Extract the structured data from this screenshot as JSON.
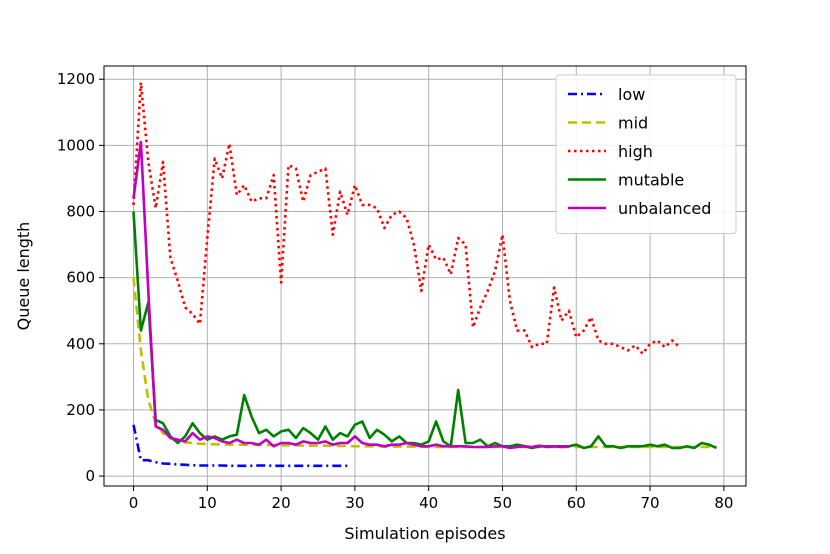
{
  "chart_data": {
    "type": "line",
    "title": "",
    "xlabel": "Simulation episodes",
    "ylabel": "Queue length",
    "xlim": [
      -4,
      83
    ],
    "ylim": [
      -30,
      1240
    ],
    "xticks": [
      0,
      10,
      20,
      30,
      40,
      50,
      60,
      70,
      80
    ],
    "yticks": [
      0,
      200,
      400,
      600,
      800,
      1000,
      1200
    ],
    "grid": true,
    "legend_position": "top-right",
    "series": [
      {
        "name": "low",
        "color": "#0000ff",
        "style": "dashdot",
        "x": [
          0,
          1,
          2,
          3,
          4,
          5,
          6,
          7,
          8,
          9,
          10,
          11,
          12,
          13,
          14,
          15,
          16,
          17,
          18,
          19,
          20,
          21,
          22,
          23,
          24,
          25,
          26,
          27,
          28,
          29
        ],
        "values": [
          155,
          48,
          48,
          42,
          38,
          37,
          35,
          34,
          33,
          32,
          32,
          32,
          32,
          31,
          31,
          31,
          31,
          32,
          32,
          31,
          31,
          31,
          31,
          31,
          31,
          31,
          31,
          31,
          31,
          31
        ]
      },
      {
        "name": "mid",
        "color": "#bfbf00",
        "style": "dashed",
        "x": [
          0,
          1,
          2,
          3,
          4,
          5,
          6,
          7,
          8,
          9,
          10,
          11,
          12,
          13,
          14,
          15,
          16,
          17,
          18,
          19,
          20,
          21,
          22,
          23,
          24,
          25,
          26,
          27,
          28,
          29,
          30,
          31,
          32,
          33,
          34,
          35,
          36,
          37,
          38,
          39,
          40,
          41,
          42,
          43,
          44,
          45,
          46,
          47,
          48,
          49,
          50,
          51,
          52,
          53,
          54,
          55,
          56,
          57,
          58,
          59,
          60,
          61,
          62,
          63,
          64,
          65,
          66,
          67,
          68,
          69,
          70,
          71,
          72,
          73,
          74,
          75,
          76,
          77,
          78,
          79
        ],
        "values": [
          600,
          380,
          230,
          160,
          130,
          115,
          105,
          102,
          100,
          98,
          97,
          96,
          96,
          95,
          95,
          95,
          94,
          94,
          94,
          94,
          93,
          93,
          93,
          92,
          92,
          92,
          92,
          91,
          91,
          91,
          90,
          90,
          90,
          90,
          89,
          89,
          89,
          89,
          89,
          89,
          88,
          88,
          88,
          88,
          88,
          88,
          88,
          88,
          88,
          88,
          88,
          88,
          88,
          88,
          88,
          88,
          88,
          88,
          88,
          88,
          88,
          88,
          88,
          88,
          88,
          88,
          88,
          88,
          88,
          88,
          88,
          88,
          88,
          88,
          88,
          88,
          88,
          88,
          88,
          88
        ]
      },
      {
        "name": "high",
        "color": "#ff0000",
        "style": "dotted",
        "x": [
          0,
          1,
          2,
          3,
          4,
          5,
          6,
          7,
          8,
          9,
          10,
          11,
          12,
          13,
          14,
          15,
          16,
          17,
          18,
          19,
          20,
          21,
          22,
          23,
          24,
          25,
          26,
          27,
          28,
          29,
          30,
          31,
          32,
          33,
          34,
          35,
          36,
          37,
          38,
          39,
          40,
          41,
          42,
          43,
          44,
          45,
          46,
          47,
          48,
          49,
          50,
          51,
          52,
          53,
          54,
          55,
          56,
          57,
          58,
          59,
          60,
          61,
          62,
          63,
          64,
          65,
          66,
          67,
          68,
          69,
          70,
          71,
          72,
          73,
          74
        ],
        "values": [
          820,
          1190,
          950,
          810,
          950,
          660,
          590,
          510,
          490,
          460,
          720,
          960,
          900,
          1005,
          850,
          880,
          830,
          840,
          840,
          910,
          585,
          940,
          930,
          830,
          910,
          920,
          930,
          730,
          860,
          790,
          880,
          820,
          820,
          810,
          750,
          790,
          800,
          780,
          700,
          560,
          700,
          655,
          660,
          610,
          720,
          700,
          450,
          510,
          560,
          620,
          730,
          530,
          440,
          440,
          390,
          400,
          400,
          570,
          470,
          500,
          420,
          440,
          480,
          410,
          400,
          400,
          390,
          380,
          395,
          370,
          400,
          410,
          390,
          410,
          390
        ]
      },
      {
        "name": "mutable",
        "color": "#008000",
        "style": "solid",
        "x": [
          0,
          1,
          2,
          3,
          4,
          5,
          6,
          7,
          8,
          9,
          10,
          11,
          12,
          13,
          14,
          15,
          16,
          17,
          18,
          19,
          20,
          21,
          22,
          23,
          24,
          25,
          26,
          27,
          28,
          29,
          30,
          31,
          32,
          33,
          34,
          35,
          36,
          37,
          38,
          39,
          40,
          41,
          42,
          43,
          44,
          45,
          46,
          47,
          48,
          49,
          50,
          51,
          52,
          53,
          54,
          55,
          56,
          57,
          58,
          59,
          60,
          61,
          62,
          63,
          64,
          65,
          66,
          67,
          68,
          69,
          70,
          71,
          72,
          73,
          74,
          75,
          76,
          77,
          78,
          79
        ],
        "values": [
          800,
          440,
          525,
          170,
          160,
          120,
          100,
          120,
          160,
          130,
          110,
          120,
          110,
          120,
          125,
          245,
          180,
          130,
          140,
          120,
          135,
          140,
          115,
          145,
          130,
          110,
          150,
          110,
          130,
          120,
          155,
          165,
          115,
          140,
          125,
          105,
          120,
          100,
          100,
          95,
          105,
          165,
          105,
          90,
          260,
          100,
          100,
          110,
          90,
          100,
          90,
          90,
          95,
          90,
          85,
          90,
          90,
          90,
          90,
          90,
          95,
          85,
          90,
          120,
          90,
          90,
          85,
          90,
          90,
          90,
          95,
          90,
          95,
          85,
          85,
          90,
          85,
          100,
          95,
          85
        ]
      },
      {
        "name": "unbalanced",
        "color": "#bf00bf",
        "style": "solid",
        "x": [
          0,
          1,
          2,
          3,
          4,
          5,
          6,
          7,
          8,
          9,
          10,
          11,
          12,
          13,
          14,
          15,
          16,
          17,
          18,
          19,
          20,
          21,
          22,
          23,
          24,
          25,
          26,
          27,
          28,
          29,
          30,
          31,
          32,
          33,
          34,
          35,
          36,
          37,
          38,
          39,
          40,
          41,
          42,
          43,
          44,
          45,
          46,
          47,
          48,
          49,
          50,
          51,
          52,
          53,
          54,
          55,
          56,
          57,
          58,
          59
        ],
        "values": [
          840,
          1010,
          560,
          150,
          140,
          115,
          110,
          105,
          130,
          110,
          120,
          115,
          105,
          100,
          110,
          100,
          100,
          95,
          110,
          90,
          100,
          100,
          95,
          105,
          100,
          100,
          105,
          95,
          100,
          100,
          120,
          100,
          95,
          95,
          90,
          95,
          95,
          100,
          95,
          90,
          90,
          95,
          90,
          90,
          90,
          90,
          88,
          88,
          88,
          90,
          90,
          85,
          88,
          90,
          88,
          92,
          88,
          90,
          88,
          90
        ]
      }
    ]
  }
}
